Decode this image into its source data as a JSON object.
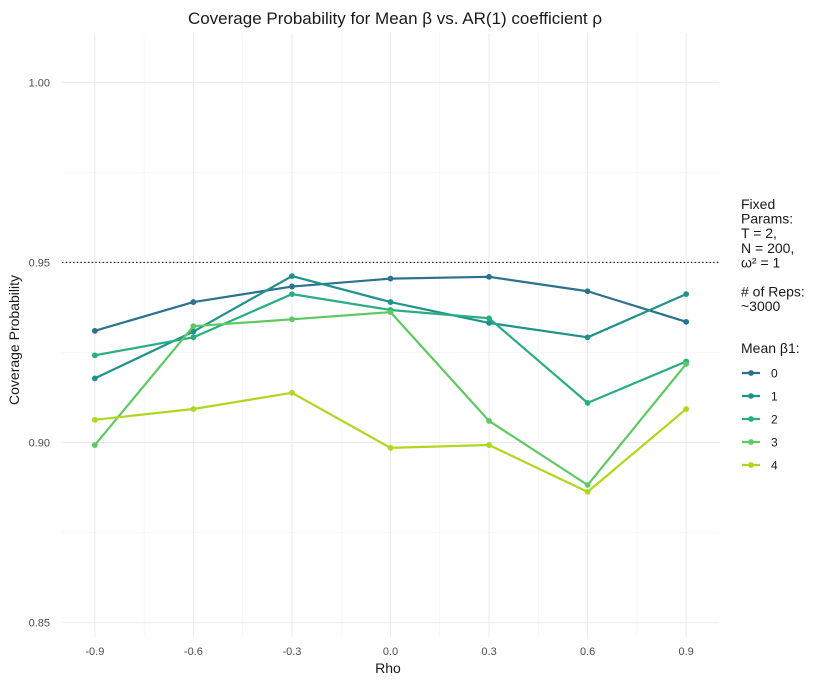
{
  "chart_data": {
    "type": "line",
    "title": "Coverage Probability for Mean β vs. AR(1) coefficient ρ",
    "xlabel": "Rho",
    "ylabel": "Coverage Probability",
    "x": [
      -0.9,
      -0.6,
      -0.3,
      0.0,
      0.3,
      0.6,
      0.9
    ],
    "x_tick_labels": [
      "-0.9",
      "-0.6",
      "-0.3",
      "0.0",
      "0.3",
      "0.6",
      "0.9"
    ],
    "xlim": [
      -1.0,
      1.0
    ],
    "ylim": [
      0.846,
      1.0137
    ],
    "y_ticks": [
      0.85,
      0.9,
      0.95,
      1.0
    ],
    "y_tick_labels": [
      "0.85",
      "0.90",
      "0.95",
      "1.00"
    ],
    "reference_line": 0.95,
    "grid": true,
    "legend_placement": "right",
    "legend_note_lines": [
      "Fixed",
      "Params:",
      "T = 2,",
      "N = 200,",
      "ω² = 1",
      "",
      "# of Reps:",
      "~3000"
    ],
    "legend_title": "Mean β1:",
    "series": [
      {
        "name": "0",
        "color": "#2c728e",
        "values": [
          0.931,
          0.939,
          0.9433,
          0.9455,
          0.946,
          0.942,
          0.9335
        ]
      },
      {
        "name": "1",
        "color": "#20928c",
        "values": [
          0.9178,
          0.9308,
          0.9462,
          0.939,
          0.9332,
          0.9292,
          0.9412
        ]
      },
      {
        "name": "2",
        "color": "#28ae80",
        "values": [
          0.9242,
          0.9292,
          0.9412,
          0.9368,
          0.9345,
          0.911,
          0.9225
        ]
      },
      {
        "name": "3",
        "color": "#5ec962",
        "values": [
          0.8993,
          0.9323,
          0.9342,
          0.9362,
          0.906,
          0.8882,
          0.9218
        ]
      },
      {
        "name": "4",
        "color": "#add81e",
        "values": [
          0.9063,
          0.9093,
          0.9138,
          0.8985,
          0.8993,
          0.8863,
          0.9093
        ]
      }
    ]
  }
}
